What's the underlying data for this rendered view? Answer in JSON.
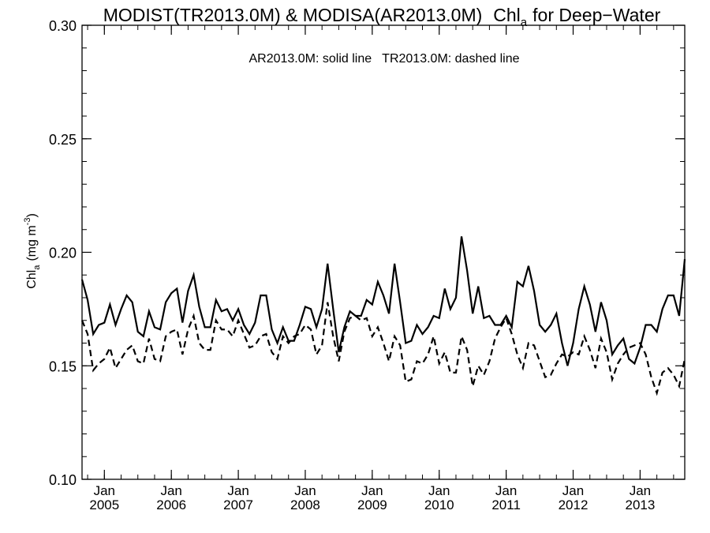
{
  "chart_data": {
    "type": "line",
    "title": {
      "main": "MODIST(TR2013.0M) & MODISA(AR2013.0M)",
      "chl": "Chl",
      "chl_sub": "a",
      "suffix": "for Deep−Water"
    },
    "annotation": "AR2013.0M: solid line   TR2013.0M: dashed line",
    "ylabel": {
      "chl": "Chl",
      "chl_sub": "a",
      "unit": "(mg m",
      "unit_sup": "-3",
      "close": ")"
    },
    "ylim": [
      0.1,
      0.3
    ],
    "xlim": [
      "2004-09",
      "2013-09"
    ],
    "y_ticks": [
      "0.10",
      "0.15",
      "0.20",
      "0.25",
      "0.30"
    ],
    "x_ticks": [
      {
        "month": "Jan",
        "year": "2005",
        "date": "2005-01"
      },
      {
        "month": "Jan",
        "year": "2006",
        "date": "2006-01"
      },
      {
        "month": "Jan",
        "year": "2007",
        "date": "2007-01"
      },
      {
        "month": "Jan",
        "year": "2008",
        "date": "2008-01"
      },
      {
        "month": "Jan",
        "year": "2009",
        "date": "2009-01"
      },
      {
        "month": "Jan",
        "year": "2010",
        "date": "2010-01"
      },
      {
        "month": "Jan",
        "year": "2011",
        "date": "2011-01"
      },
      {
        "month": "Jan",
        "year": "2012",
        "date": "2012-01"
      },
      {
        "month": "Jan",
        "year": "2013",
        "date": "2013-01"
      }
    ],
    "x": [
      "2004-09",
      "2004-10",
      "2004-11",
      "2004-12",
      "2005-01",
      "2005-02",
      "2005-03",
      "2005-04",
      "2005-05",
      "2005-06",
      "2005-07",
      "2005-08",
      "2005-09",
      "2005-10",
      "2005-11",
      "2005-12",
      "2006-01",
      "2006-02",
      "2006-03",
      "2006-04",
      "2006-05",
      "2006-06",
      "2006-07",
      "2006-08",
      "2006-09",
      "2006-10",
      "2006-11",
      "2006-12",
      "2007-01",
      "2007-02",
      "2007-03",
      "2007-04",
      "2007-05",
      "2007-06",
      "2007-07",
      "2007-08",
      "2007-09",
      "2007-10",
      "2007-11",
      "2007-12",
      "2008-01",
      "2008-02",
      "2008-03",
      "2008-04",
      "2008-05",
      "2008-06",
      "2008-07",
      "2008-08",
      "2008-09",
      "2008-10",
      "2008-11",
      "2008-12",
      "2009-01",
      "2009-02",
      "2009-03",
      "2009-04",
      "2009-05",
      "2009-06",
      "2009-07",
      "2009-08",
      "2009-09",
      "2009-10",
      "2009-11",
      "2009-12",
      "2010-01",
      "2010-02",
      "2010-03",
      "2010-04",
      "2010-05",
      "2010-06",
      "2010-07",
      "2010-08",
      "2010-09",
      "2010-10",
      "2010-11",
      "2010-12",
      "2011-01",
      "2011-02",
      "2011-03",
      "2011-04",
      "2011-05",
      "2011-06",
      "2011-07",
      "2011-08",
      "2011-09",
      "2011-10",
      "2011-11",
      "2011-12",
      "2012-01",
      "2012-02",
      "2012-03",
      "2012-04",
      "2012-05",
      "2012-06",
      "2012-07",
      "2012-08",
      "2012-09",
      "2012-10",
      "2012-11",
      "2012-12",
      "2013-01",
      "2013-02",
      "2013-03",
      "2013-04",
      "2013-05",
      "2013-06",
      "2013-07",
      "2013-08",
      "2013-09"
    ],
    "series": [
      {
        "name": "AR2013.0M",
        "style": "solid",
        "color": "#000000",
        "values": [
          0.188,
          0.179,
          0.164,
          0.168,
          0.169,
          0.177,
          0.168,
          0.175,
          0.181,
          0.178,
          0.165,
          0.163,
          0.174,
          0.167,
          0.166,
          0.178,
          0.182,
          0.184,
          0.169,
          0.183,
          0.19,
          0.176,
          0.167,
          0.167,
          0.179,
          0.174,
          0.175,
          0.17,
          0.175,
          0.168,
          0.164,
          0.169,
          0.181,
          0.181,
          0.166,
          0.16,
          0.167,
          0.161,
          0.161,
          0.168,
          0.176,
          0.175,
          0.167,
          0.175,
          0.195,
          0.175,
          0.156,
          0.167,
          0.174,
          0.172,
          0.172,
          0.179,
          0.177,
          0.187,
          0.181,
          0.173,
          0.195,
          0.178,
          0.16,
          0.161,
          0.168,
          0.164,
          0.167,
          0.172,
          0.171,
          0.184,
          0.175,
          0.18,
          0.207,
          0.192,
          0.173,
          0.185,
          0.171,
          0.172,
          0.168,
          0.168,
          0.172,
          0.167,
          0.187,
          0.185,
          0.194,
          0.183,
          0.168,
          0.165,
          0.168,
          0.173,
          0.16,
          0.15,
          0.16,
          0.175,
          0.185,
          0.177,
          0.165,
          0.178,
          0.17,
          0.155,
          0.159,
          0.162,
          0.153,
          0.151,
          0.158,
          0.168,
          0.168,
          0.165,
          0.175,
          0.181,
          0.181,
          0.172,
          0.197
        ]
      },
      {
        "name": "TR2013.0M",
        "style": "dashed",
        "color": "#000000",
        "values": [
          0.17,
          0.164,
          0.148,
          0.151,
          0.153,
          0.158,
          0.149,
          0.153,
          0.157,
          0.159,
          0.152,
          0.151,
          0.162,
          0.153,
          0.152,
          0.163,
          0.165,
          0.166,
          0.155,
          0.166,
          0.172,
          0.16,
          0.157,
          0.157,
          0.17,
          0.166,
          0.166,
          0.163,
          0.17,
          0.164,
          0.158,
          0.159,
          0.163,
          0.164,
          0.156,
          0.153,
          0.163,
          0.16,
          0.163,
          0.164,
          0.168,
          0.166,
          0.155,
          0.159,
          0.178,
          0.163,
          0.152,
          0.165,
          0.171,
          0.172,
          0.17,
          0.171,
          0.163,
          0.167,
          0.16,
          0.152,
          0.163,
          0.159,
          0.143,
          0.144,
          0.152,
          0.151,
          0.155,
          0.163,
          0.151,
          0.156,
          0.147,
          0.147,
          0.163,
          0.157,
          0.141,
          0.15,
          0.146,
          0.152,
          0.162,
          0.167,
          0.171,
          0.164,
          0.155,
          0.149,
          0.16,
          0.159,
          0.152,
          0.145,
          0.146,
          0.151,
          0.155,
          0.154,
          0.156,
          0.155,
          0.163,
          0.157,
          0.149,
          0.162,
          0.156,
          0.144,
          0.151,
          0.155,
          0.158,
          0.159,
          0.16,
          0.155,
          0.145,
          0.138,
          0.147,
          0.149,
          0.146,
          0.141,
          0.153
        ]
      }
    ],
    "grid": false,
    "legend": "annotation top-center"
  }
}
